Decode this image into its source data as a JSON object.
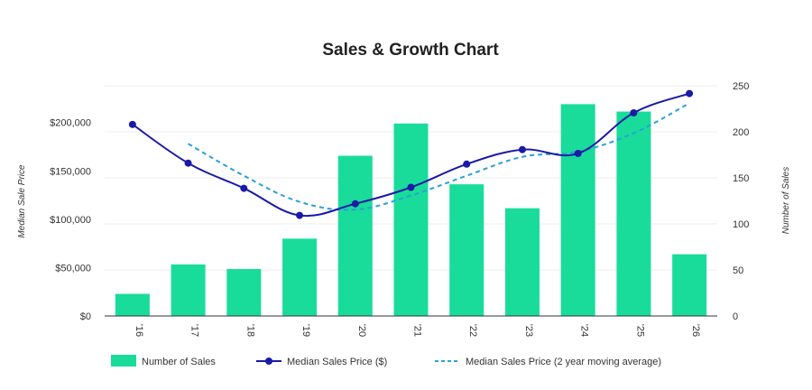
{
  "chart_data": {
    "type": "bar",
    "title": "Sales & Growth Chart",
    "categories": [
      "'16",
      "'17",
      "'18",
      "'19",
      "'20",
      "'21",
      "'22",
      "'23",
      "'24",
      "'25",
      "'26"
    ],
    "series": [
      {
        "name": "Number of Sales",
        "type": "bar",
        "axis": "right",
        "color": "#19dc9b",
        "values": [
          24,
          56,
          51,
          84,
          174,
          209,
          143,
          117,
          230,
          222,
          67
        ]
      },
      {
        "name": "Median Sales Price ($)",
        "type": "line",
        "axis": "left",
        "color": "#1a1aa6",
        "values": [
          198000,
          158000,
          132000,
          104000,
          116000,
          133000,
          157000,
          172000,
          168000,
          210000,
          230000
        ]
      },
      {
        "name": "Median Sales Price (2 year moving average)",
        "type": "line",
        "axis": "left",
        "style": "dashed",
        "color": "#2aa0d6",
        "values": [
          null,
          178000,
          145000,
          118000,
          110000,
          124500,
          145000,
          164500,
          170000,
          189000,
          220000
        ]
      }
    ],
    "y_left": {
      "label": "Median Sale Price",
      "ticks": [
        "$0",
        "$50,000",
        "$100,000",
        "$150,000",
        "$200,000"
      ],
      "tick_values": [
        0,
        50000,
        100000,
        150000,
        200000
      ],
      "range": [
        0,
        238000
      ]
    },
    "y_right": {
      "label": "Number of Sales",
      "ticks": [
        "0",
        "50",
        "100",
        "150",
        "200",
        "250"
      ],
      "tick_values": [
        0,
        50,
        100,
        150,
        200,
        250
      ],
      "range": [
        0,
        250
      ]
    },
    "grid": true,
    "legend_position": "bottom-left"
  }
}
